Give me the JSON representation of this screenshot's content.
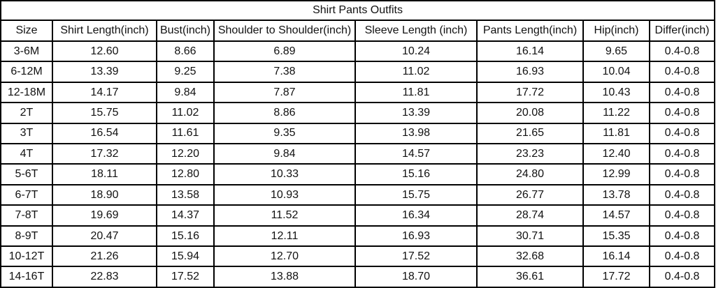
{
  "chart_data": {
    "type": "table",
    "title": "Shirt Pants Outfits",
    "columns": [
      "Size",
      "Shirt Length(inch)",
      "Bust(inch)",
      "Shoulder to Shoulder(inch)",
      "Sleeve Length (inch)",
      "Pants Length(inch)",
      "Hip(inch)",
      "Differ(inch)"
    ],
    "rows": [
      [
        "3-6M",
        "12.60",
        "8.66",
        "6.89",
        "10.24",
        "16.14",
        "9.65",
        "0.4-0.8"
      ],
      [
        "6-12M",
        "13.39",
        "9.25",
        "7.38",
        "11.02",
        "16.93",
        "10.04",
        "0.4-0.8"
      ],
      [
        "12-18M",
        "14.17",
        "9.84",
        "7.87",
        "11.81",
        "17.72",
        "10.43",
        "0.4-0.8"
      ],
      [
        "2T",
        "15.75",
        "11.02",
        "8.86",
        "13.39",
        "20.08",
        "11.22",
        "0.4-0.8"
      ],
      [
        "3T",
        "16.54",
        "11.61",
        "9.35",
        "13.98",
        "21.65",
        "11.81",
        "0.4-0.8"
      ],
      [
        "4T",
        "17.32",
        "12.20",
        "9.84",
        "14.57",
        "23.23",
        "12.40",
        "0.4-0.8"
      ],
      [
        "5-6T",
        "18.11",
        "12.80",
        "10.33",
        "15.16",
        "24.80",
        "12.99",
        "0.4-0.8"
      ],
      [
        "6-7T",
        "18.90",
        "13.58",
        "10.93",
        "15.75",
        "26.77",
        "13.78",
        "0.4-0.8"
      ],
      [
        "7-8T",
        "19.69",
        "14.37",
        "11.52",
        "16.34",
        "28.74",
        "14.57",
        "0.4-0.8"
      ],
      [
        "8-9T",
        "20.47",
        "15.16",
        "12.11",
        "16.93",
        "30.71",
        "15.35",
        "0.4-0.8"
      ],
      [
        "10-12T",
        "21.26",
        "15.94",
        "12.70",
        "17.52",
        "32.68",
        "16.14",
        "0.4-0.8"
      ],
      [
        "14-16T",
        "22.83",
        "17.52",
        "13.88",
        "18.70",
        "36.61",
        "17.72",
        "0.4-0.8"
      ]
    ]
  }
}
